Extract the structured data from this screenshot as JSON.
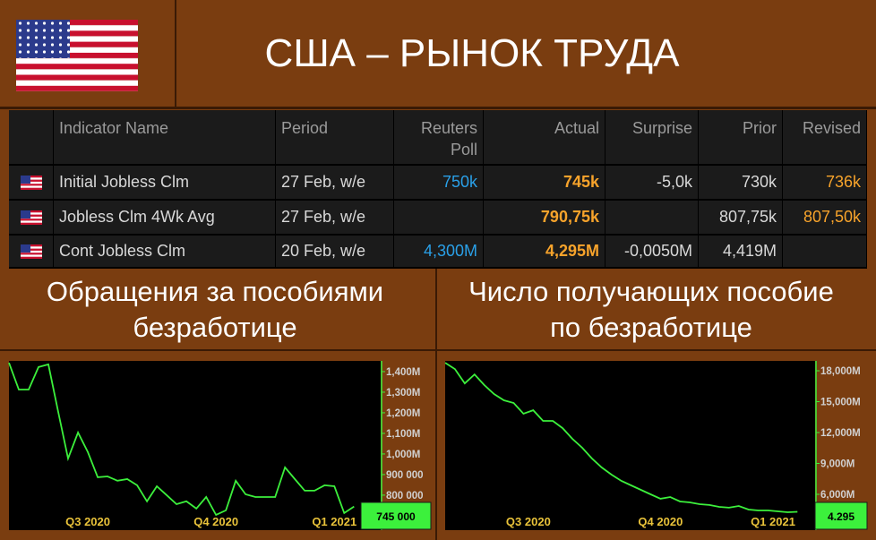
{
  "header": {
    "title": "США – РЫНОК ТРУДА"
  },
  "table": {
    "columns": [
      "Indicator Name",
      "Period",
      "Reuters Poll",
      "Actual",
      "Surprise",
      "Prior",
      "Revised"
    ],
    "rows": [
      [
        "Initial Jobless Clm",
        "27 Feb, w/e",
        "750k",
        "745k",
        "-5,0k",
        "730k",
        "736k"
      ],
      [
        "Jobless Clm 4Wk Avg",
        "27 Feb, w/e",
        null,
        "790,75k",
        null,
        "807,75k",
        "807,50k"
      ],
      [
        "Cont Jobless Clm",
        "20 Feb, w/e",
        "4,300M",
        "4,295M",
        "-0,0050M",
        "4,419M",
        null
      ]
    ]
  },
  "sections": [
    {
      "title": "Обращения за пособиями безработице"
    },
    {
      "title": "Число получающих пособие по безработице"
    }
  ],
  "charts": [
    {
      "type": "line",
      "color": "#3cf03c",
      "values": [
        1443000,
        1313000,
        1313000,
        1422000,
        1435000,
        1204000,
        978000,
        1104000,
        1009000,
        887000,
        891000,
        870000,
        878000,
        848000,
        770000,
        843000,
        800000,
        756000,
        770000,
        735000,
        791000,
        704000,
        726000,
        870000,
        804000,
        791000,
        791000,
        791000,
        935000,
        878000,
        822000,
        822000,
        848000,
        843000,
        713000,
        745000
      ],
      "xlim": [
        0,
        37.7
      ],
      "ylim": [
        630000,
        1452000
      ],
      "yticks": [
        {
          "value": 1400000,
          "label": "1,400M"
        },
        {
          "value": 1300000,
          "label": "1,300M"
        },
        {
          "value": 1200000,
          "label": "1,200M"
        },
        {
          "value": 1100000,
          "label": "1,100M"
        },
        {
          "value": 1000000,
          "label": "1,000M"
        },
        {
          "value": 900000,
          "label": "900 000"
        },
        {
          "value": 800000,
          "label": "800 000"
        }
      ],
      "xticks": [
        {
          "value": 8,
          "label": "Q3 2020"
        },
        {
          "value": 21,
          "label": "Q4 2020"
        },
        {
          "value": 33,
          "label": "Q1 2021"
        }
      ],
      "current": {
        "value": 745000,
        "label": "745 000"
      }
    },
    {
      "type": "line",
      "color": "#3cf03c",
      "values": [
        18.78,
        18.17,
        16.78,
        17.65,
        16.61,
        15.74,
        15.13,
        14.87,
        13.83,
        14.17,
        13.13,
        13.13,
        12.43,
        11.39,
        10.52,
        9.48,
        8.61,
        7.91,
        7.3,
        6.87,
        6.43,
        6.0,
        5.57,
        5.74,
        5.3,
        5.22,
        5.04,
        4.96,
        4.78,
        4.7,
        4.87,
        4.52,
        4.43,
        4.43,
        4.35,
        4.26,
        4.3
      ],
      "xlim": [
        0,
        37.8
      ],
      "ylim": [
        2.52,
        18.96
      ],
      "yticks": [
        {
          "value": 18,
          "label": "18,000M"
        },
        {
          "value": 15,
          "label": "15,000M"
        },
        {
          "value": 12,
          "label": "12,000M"
        },
        {
          "value": 9,
          "label": "9,000M"
        },
        {
          "value": 6,
          "label": "6,000M"
        }
      ],
      "xticks": [
        {
          "value": 8.5,
          "label": "Q3 2020"
        },
        {
          "value": 22,
          "label": "Q4 2020"
        },
        {
          "value": 33.5,
          "label": "Q1 2021"
        }
      ],
      "current": {
        "value": 4.295,
        "label": "4.295"
      }
    }
  ]
}
